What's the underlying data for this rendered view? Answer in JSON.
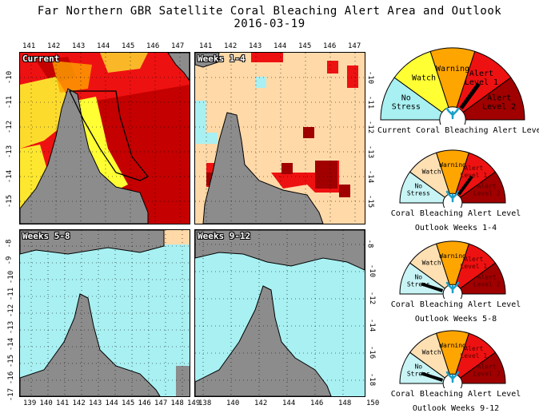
{
  "title": "Far Northern GBR Satellite Coral Bleaching Alert Area and Outlook",
  "date": "2016-03-19",
  "panels": [
    {
      "label": "Current"
    },
    {
      "label": "Weeks 1-4"
    },
    {
      "label": "Weeks 5-8"
    },
    {
      "label": "Weeks 9-12"
    }
  ],
  "axes": {
    "top_lon_left": [
      "141",
      "142",
      "143",
      "144",
      "145",
      "146",
      "147"
    ],
    "top_lon_right": [
      "141",
      "142",
      "143",
      "144",
      "145",
      "146",
      "147"
    ],
    "bottom_lon_left": [
      "139",
      "140",
      "141",
      "142",
      "143",
      "144",
      "145",
      "146",
      "147",
      "148",
      "149"
    ],
    "bottom_lon_right": [
      "138",
      "140",
      "142",
      "144",
      "146",
      "148",
      "150"
    ],
    "lat_top_left": [
      "-10",
      "-11",
      "-12",
      "-13",
      "-14",
      "-15"
    ],
    "lat_top_right": [
      "-10",
      "-11",
      "-12",
      "-13",
      "-14",
      "-15"
    ],
    "lat_bottom_left": [
      "-8",
      "-9",
      "-10",
      "-11",
      "-12",
      "-13",
      "-14",
      "-15",
      "-16",
      "-17"
    ],
    "lat_bottom_right": [
      "-8",
      "-10",
      "-12",
      "-14",
      "-16",
      "-18"
    ]
  },
  "gauge_labels": {
    "no_stress": "No\nStress",
    "watch": "Watch",
    "warning": "Warning",
    "alert1": "Alert\nLevel 1",
    "alert2": "Alert\nLevel 2"
  },
  "gauges": [
    {
      "caption1": "Current Coral Bleaching Alert Level",
      "caption2": "",
      "level": "Alert Level 1"
    },
    {
      "caption1": "Coral Bleaching Alert Level",
      "caption2": "Outlook Weeks 1-4",
      "level": "Alert Level 1"
    },
    {
      "caption1": "Coral Bleaching Alert Level",
      "caption2": "Outlook Weeks 5-8",
      "level": "No Stress"
    },
    {
      "caption1": "Coral Bleaching Alert Level",
      "caption2": "Outlook Weeks 9-12",
      "level": "No Stress"
    }
  ],
  "colors": {
    "no_stress": "#a8f0f2",
    "watch": "#ffff33",
    "warning": "#ffa500",
    "alert1": "#ee1111",
    "alert2": "#a00000",
    "land": "#8c8c8c",
    "outlook_watch": "#ffd9a8"
  }
}
